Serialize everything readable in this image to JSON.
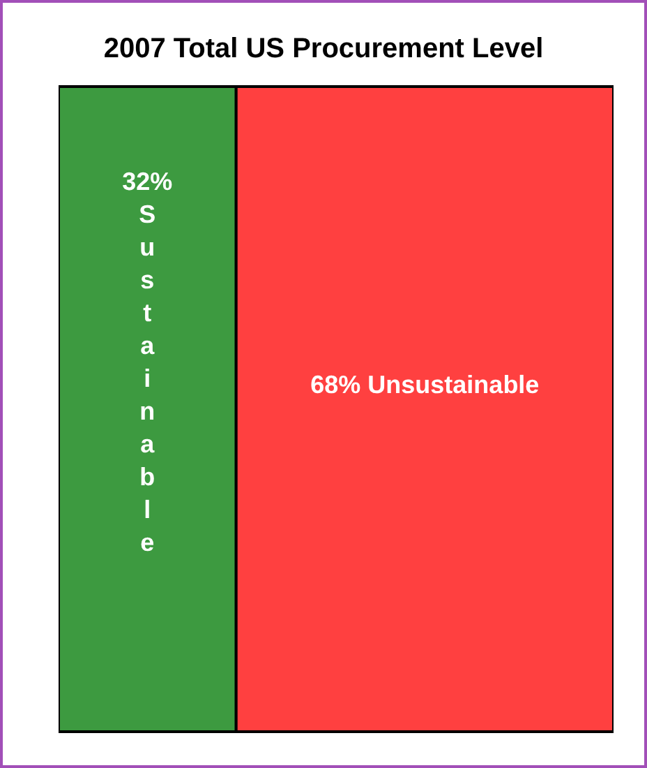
{
  "chart_data": {
    "type": "bar",
    "title": "2007 Total US Procurement Level",
    "orientation": "horizontal",
    "stacked": true,
    "categories": [
      null
    ],
    "xlim": [
      0,
      100
    ],
    "tick_labels": false,
    "grid": false,
    "legend": false,
    "series": [
      {
        "name": "Sustainable",
        "color": "#3d9a40",
        "values": [
          32
        ],
        "value_labels": [
          "32%"
        ]
      },
      {
        "name": "Unsustainable",
        "color": "#ff4040",
        "values": [
          68
        ],
        "value_labels": [
          "68%"
        ]
      }
    ]
  }
}
